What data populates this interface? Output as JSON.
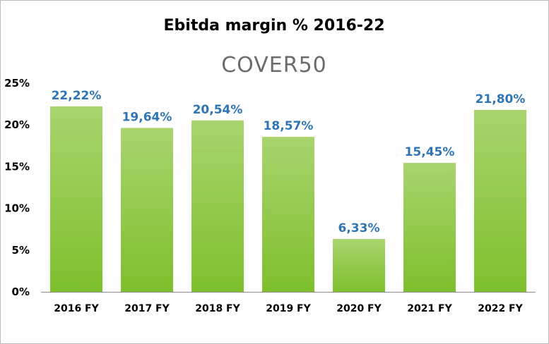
{
  "chart_data": {
    "type": "bar",
    "title": "Ebitda margin % 2016-22",
    "subtitle": "COVER50",
    "categories": [
      "2016 FY",
      "2017 FY",
      "2018 FY",
      "2019 FY",
      "2020 FY",
      "2021 FY",
      "2022 FY"
    ],
    "values": [
      22.22,
      19.64,
      20.54,
      18.57,
      6.33,
      15.45,
      21.8
    ],
    "data_labels": [
      "22,22%",
      "19,64%",
      "20,54%",
      "18,57%",
      "6,33%",
      "15,45%",
      "21,80%"
    ],
    "yticks": [
      0,
      5,
      10,
      15,
      20,
      25
    ],
    "ytick_labels": [
      "0%",
      "5%",
      "10%",
      "15%",
      "20%",
      "25%"
    ],
    "ylim": [
      0,
      25
    ],
    "xlabel": "",
    "ylabel": "",
    "grid": false,
    "legend": "none",
    "colors": {
      "bar_top": "#a9d46e",
      "bar_bottom": "#7ec02d",
      "data_label": "#2e75b6",
      "axis": "#8c8c8c"
    }
  }
}
